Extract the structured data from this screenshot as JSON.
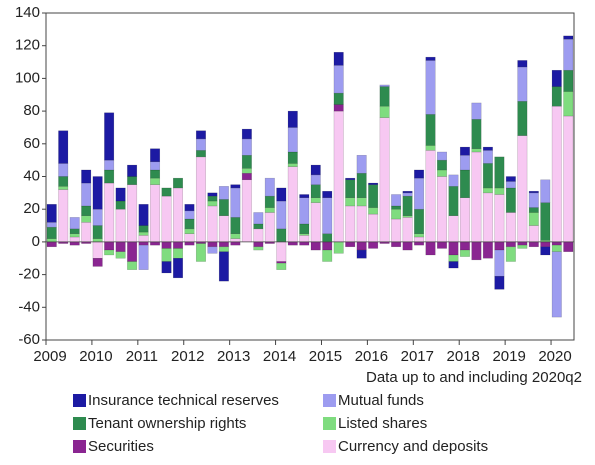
{
  "chart_data": {
    "type": "stacked_bar",
    "subtitle": "Data up to and including 2020q2",
    "categories": [
      "2009",
      null,
      null,
      null,
      "2010",
      null,
      null,
      null,
      "2011",
      null,
      null,
      null,
      "2012",
      null,
      null,
      null,
      "2013",
      null,
      null,
      null,
      "2014",
      null,
      null,
      null,
      "2015",
      null,
      null,
      null,
      "2016",
      null,
      null,
      null,
      "2017",
      null,
      null,
      null,
      "2018",
      null,
      null,
      null,
      "2019",
      null,
      null,
      null,
      "2020",
      null
    ],
    "ylim": [
      -60,
      140
    ],
    "yticks": [
      -60,
      -40,
      -20,
      0,
      20,
      40,
      60,
      80,
      100,
      120,
      140
    ],
    "series": [
      {
        "name": "Currency and deposits",
        "color": "#f7c8f2",
        "values": [
          0,
          32,
          3,
          12,
          -10,
          36,
          20,
          35,
          4,
          35,
          28,
          33,
          5,
          52,
          22,
          16,
          2,
          38,
          8,
          18,
          -12,
          46,
          4,
          24,
          0,
          80,
          22,
          22,
          17,
          76,
          14,
          15,
          3,
          56,
          40,
          16,
          27,
          55,
          30,
          29,
          18,
          65,
          10,
          0,
          83,
          77
        ]
      },
      {
        "name": "Securities",
        "color": "#8a2591",
        "values": [
          -3,
          -1,
          -2,
          -1,
          -5,
          -5,
          -6,
          -12,
          -2,
          -2,
          -4,
          -4,
          -2,
          -1,
          -3,
          -3,
          -2,
          4,
          -3,
          -1,
          -1,
          -2,
          -2,
          -5,
          -5,
          4,
          -3,
          -5,
          -4,
          -1,
          -3,
          -5,
          -2,
          -8,
          -4,
          -8,
          -5,
          -11,
          -10,
          -5,
          -3,
          -2,
          -3,
          -3,
          -2,
          -6
        ]
      },
      {
        "name": "Listed shares",
        "color": "#7fdc7f",
        "values": [
          2,
          2,
          2,
          4,
          2,
          -3,
          -4,
          -5,
          2,
          4,
          -8,
          -6,
          3,
          -11,
          3,
          -3,
          3,
          3,
          -2,
          3,
          -4,
          2,
          1,
          3,
          -7,
          -7,
          5,
          5,
          4,
          7,
          6,
          1,
          2,
          3,
          4,
          -4,
          -4,
          2,
          3,
          4,
          -9,
          -2,
          8,
          1,
          -4,
          15
        ]
      },
      {
        "name": "Tenant ownership rights",
        "color": "#2e8b4f",
        "values": [
          7,
          6,
          3,
          6,
          8,
          8,
          5,
          5,
          4,
          5,
          5,
          6,
          6,
          4,
          3,
          10,
          10,
          8,
          3,
          7,
          8,
          7,
          6,
          8,
          5,
          7,
          11,
          15,
          14,
          12,
          2,
          12,
          15,
          19,
          6,
          18,
          17,
          18,
          15,
          19,
          15,
          21,
          3,
          23,
          12,
          13
        ]
      },
      {
        "name": "Mutual funds",
        "color": "#9d9cf0",
        "values": [
          3,
          8,
          7,
          14,
          10,
          6,
          0,
          0,
          -15,
          5,
          0,
          0,
          5,
          7,
          -4,
          8,
          18,
          10,
          7,
          11,
          17,
          15,
          16,
          6,
          22,
          17,
          0,
          11,
          0,
          1,
          7,
          2,
          19,
          33,
          5,
          7,
          9,
          10,
          8,
          -16,
          4,
          21,
          9,
          14,
          -40,
          19
        ]
      },
      {
        "name": "Insurance technical reserves",
        "color": "#1c1aa3",
        "values": [
          11,
          20,
          0,
          8,
          20,
          29,
          8,
          7,
          13,
          8,
          -7,
          -12,
          4,
          5,
          2,
          -18,
          2,
          6,
          0,
          0,
          8,
          10,
          2,
          6,
          4,
          8,
          1,
          -5,
          1,
          0,
          0,
          1,
          5,
          2,
          0,
          -4,
          5,
          0,
          2,
          -8,
          3,
          4,
          1,
          -5,
          10,
          2
        ]
      }
    ]
  }
}
